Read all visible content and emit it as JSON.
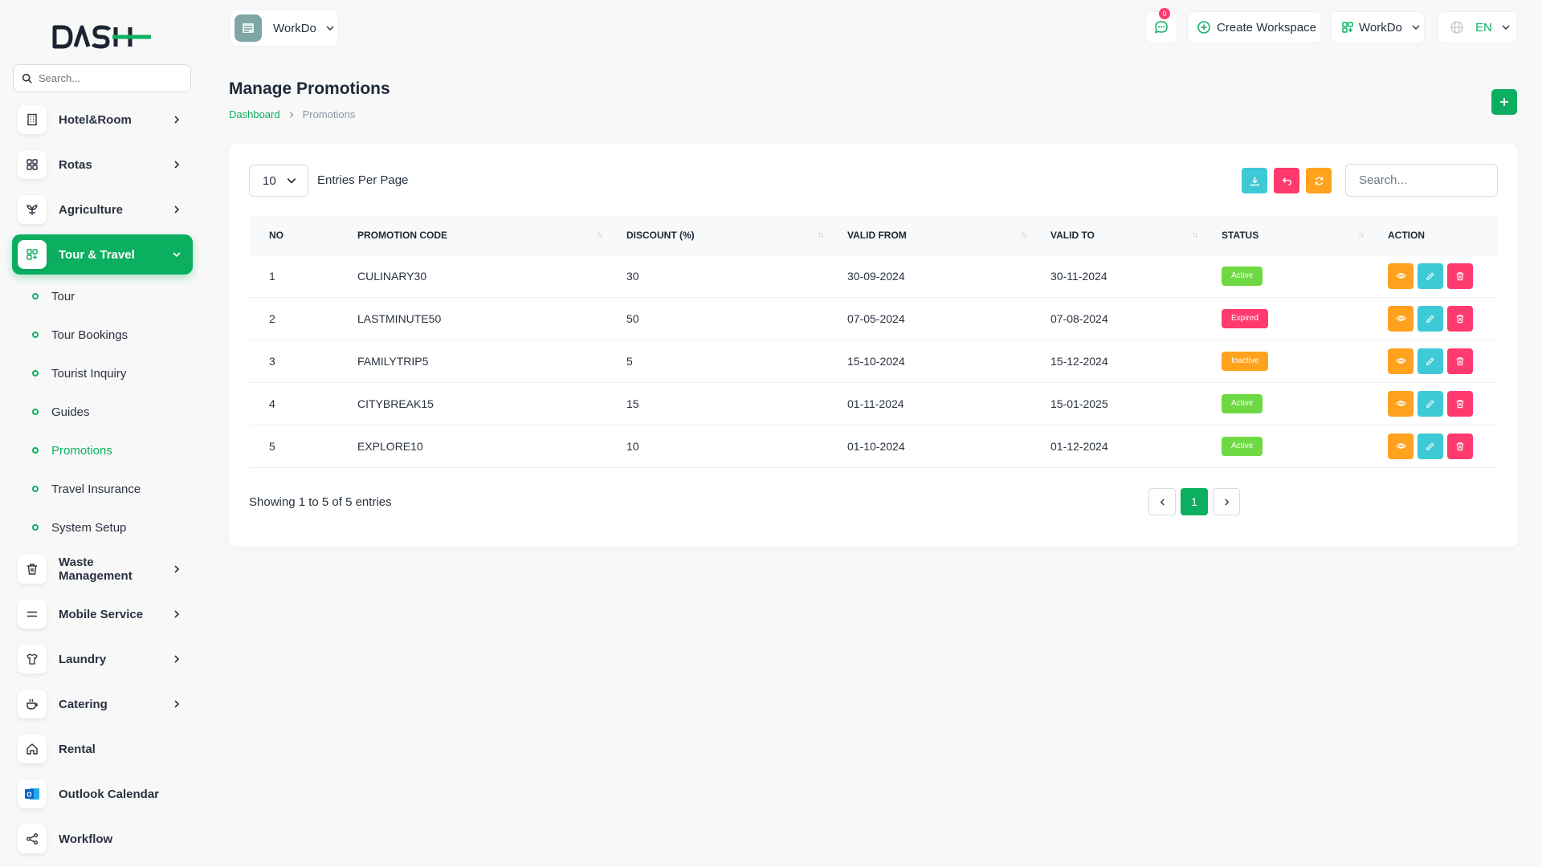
{
  "brand": {
    "logo_text": "DASH",
    "accent": "#0caf60"
  },
  "sidebar": {
    "search_placeholder": "Search...",
    "items": [
      {
        "label": "Hotel&Room",
        "icon": "building-icon",
        "expandable": true
      },
      {
        "label": "Rotas",
        "icon": "grid-icon",
        "expandable": true
      },
      {
        "label": "Agriculture",
        "icon": "plant-icon",
        "expandable": true
      },
      {
        "label": "Tour & Travel",
        "icon": "grid-plus-icon",
        "expandable": true,
        "active": true
      },
      {
        "label": "Waste Management",
        "icon": "trash-icon",
        "expandable": true
      },
      {
        "label": "Mobile Service",
        "icon": "menu-lines-icon",
        "expandable": true
      },
      {
        "label": "Laundry",
        "icon": "shirt-icon",
        "expandable": true
      },
      {
        "label": "Catering",
        "icon": "cup-icon",
        "expandable": true
      },
      {
        "label": "Rental",
        "icon": "home-icon",
        "expandable": false
      },
      {
        "label": "Outlook Calendar",
        "icon": "outlook-icon",
        "expandable": false
      },
      {
        "label": "Workflow",
        "icon": "share-icon",
        "expandable": false
      }
    ],
    "sub_items": [
      {
        "label": "Tour"
      },
      {
        "label": "Tour Bookings"
      },
      {
        "label": "Tourist Inquiry"
      },
      {
        "label": "Guides"
      },
      {
        "label": "Promotions",
        "active": true
      },
      {
        "label": "Travel Insurance"
      },
      {
        "label": "System Setup"
      }
    ]
  },
  "header": {
    "workspace_label": "WorkDo",
    "notification_count": "0",
    "create_workspace_label": "Create Workspace",
    "workspace_switch_label": "WorkDo",
    "language_label": "EN"
  },
  "page": {
    "title": "Manage Promotions",
    "breadcrumb": {
      "home": "Dashboard",
      "current": "Promotions"
    }
  },
  "table": {
    "per_page_value": "10",
    "per_page_label": "Entries Per Page",
    "search_placeholder": "Search...",
    "columns": [
      "No",
      "Promotion Code",
      "Discount (%)",
      "Valid From",
      "Valid To",
      "Status",
      "Action"
    ],
    "rows": [
      {
        "no": "1",
        "code": "CULINARY30",
        "discount": "30",
        "from": "30-09-2024",
        "to": "30-11-2024",
        "status": "Active",
        "status_type": "active"
      },
      {
        "no": "2",
        "code": "LASTMINUTE50",
        "discount": "50",
        "from": "07-05-2024",
        "to": "07-08-2024",
        "status": "Expired",
        "status_type": "expired"
      },
      {
        "no": "3",
        "code": "FAMILYTRIP5",
        "discount": "5",
        "from": "15-10-2024",
        "to": "15-12-2024",
        "status": "Inactive",
        "status_type": "inactive"
      },
      {
        "no": "4",
        "code": "CITYBREAK15",
        "discount": "15",
        "from": "01-11-2024",
        "to": "15-01-2025",
        "status": "Active",
        "status_type": "active"
      },
      {
        "no": "5",
        "code": "EXPLORE10",
        "discount": "10",
        "from": "01-10-2024",
        "to": "01-12-2024",
        "status": "Active",
        "status_type": "active"
      }
    ],
    "showing_text": "Showing 1 to 5 of 5 entries",
    "current_page": "1"
  }
}
